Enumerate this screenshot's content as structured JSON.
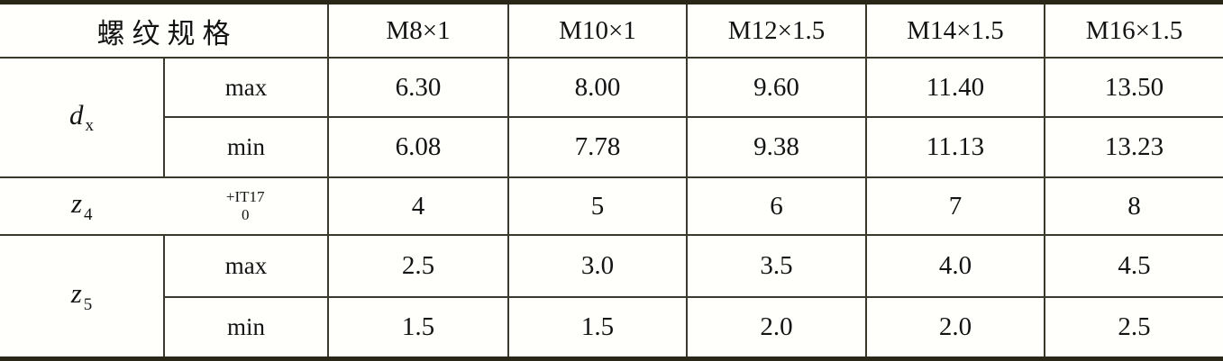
{
  "header": {
    "spec_label": "螺纹规格",
    "columns": [
      "M8×1",
      "M10×1",
      "M12×1.5",
      "M14×1.5",
      "M16×1.5"
    ]
  },
  "rows": {
    "dx": {
      "symbol": "d",
      "sub": "x",
      "max_label": "max",
      "min_label": "min",
      "max": [
        "6.30",
        "8.00",
        "9.60",
        "11.40",
        "13.50"
      ],
      "min": [
        "6.08",
        "7.78",
        "9.38",
        "11.13",
        "13.23"
      ]
    },
    "z4": {
      "symbol": "z",
      "sub": "4",
      "tol_upper": "+IT17",
      "tol_lower": "0",
      "values": [
        "4",
        "5",
        "6",
        "7",
        "8"
      ]
    },
    "z5": {
      "symbol": "z",
      "sub": "5",
      "max_label": "max",
      "min_label": "min",
      "max": [
        "2.5",
        "3.0",
        "3.5",
        "4.0",
        "4.5"
      ],
      "min": [
        "1.5",
        "1.5",
        "2.0",
        "2.0",
        "2.5"
      ]
    }
  },
  "colors": {
    "line": "#3a392c",
    "thick_border": "#2a2718",
    "background": "#fffffc",
    "text": "#131313"
  }
}
